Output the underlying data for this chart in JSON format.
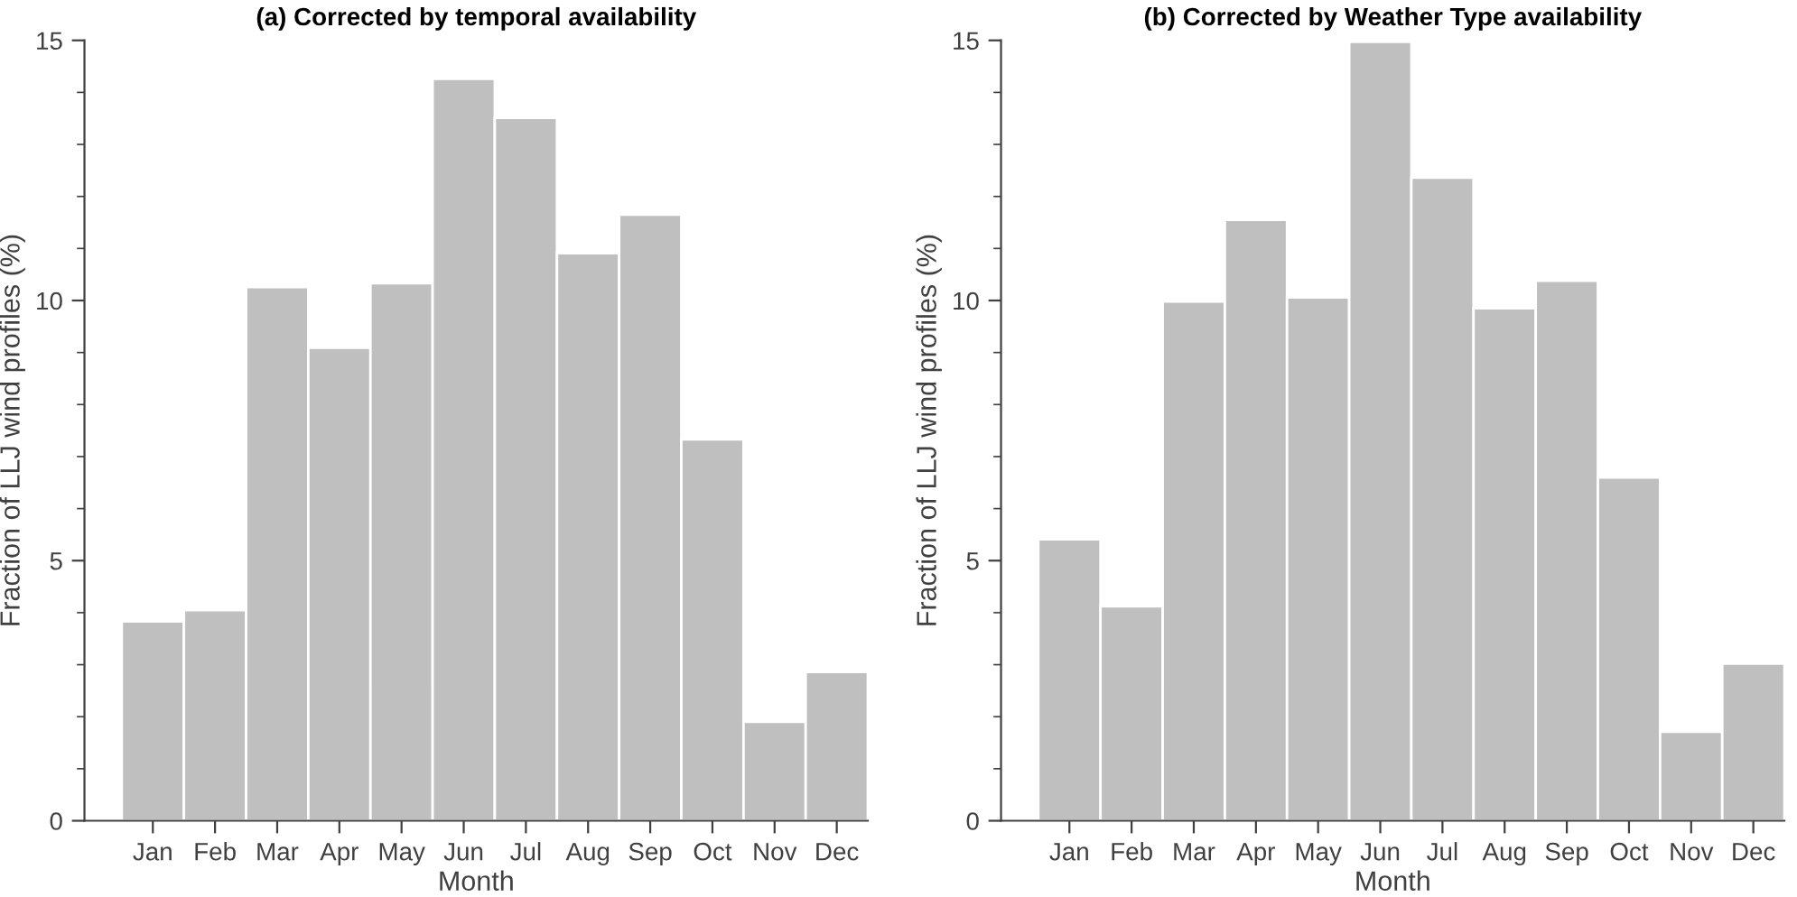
{
  "chart_data": [
    {
      "type": "bar",
      "title": "(a) Corrected by temporal availability",
      "xlabel": "Month",
      "ylabel": "Fraction of LLJ wind profiles (%)",
      "categories": [
        "Jan",
        "Feb",
        "Mar",
        "Apr",
        "May",
        "Jun",
        "Jul",
        "Aug",
        "Sep",
        "Oct",
        "Nov",
        "Dec"
      ],
      "values": [
        3.83,
        4.05,
        10.26,
        9.09,
        10.33,
        14.26,
        13.51,
        10.91,
        11.65,
        7.33,
        1.9,
        2.86
      ],
      "color": "#bfbfbf",
      "ylim": [
        0,
        15
      ],
      "yticks": [
        0,
        {
          "value": 1,
          "label": null
        },
        {
          "value": 2,
          "label": null
        },
        {
          "value": 3,
          "label": null
        },
        {
          "value": 4,
          "label": null
        },
        5,
        {
          "value": 6,
          "label": null
        },
        {
          "value": 7,
          "label": null
        },
        {
          "value": 8,
          "label": null
        },
        {
          "value": 9,
          "label": null
        },
        10,
        {
          "value": 11,
          "label": null
        },
        {
          "value": 12,
          "label": null
        },
        {
          "value": 13,
          "label": null
        },
        {
          "value": 14,
          "label": null
        },
        15
      ],
      "grid": false,
      "legend": false
    },
    {
      "type": "bar",
      "title": "(b) Corrected by Weather Type availability",
      "xlabel": "Month",
      "ylabel": "Fraction of LLJ wind profiles (%)",
      "categories": [
        "Jan",
        "Feb",
        "Mar",
        "Apr",
        "May",
        "Jun",
        "Jul",
        "Aug",
        "Sep",
        "Oct",
        "Nov",
        "Dec"
      ],
      "values": [
        5.41,
        4.12,
        9.98,
        11.55,
        10.06,
        14.97,
        12.36,
        9.85,
        10.38,
        6.6,
        1.71,
        3.02
      ],
      "color": "#bfbfbf",
      "ylim": [
        0,
        15
      ],
      "yticks": [
        0,
        {
          "value": 1,
          "label": null
        },
        {
          "value": 2,
          "label": null
        },
        {
          "value": 3,
          "label": null
        },
        {
          "value": 4,
          "label": null
        },
        5,
        {
          "value": 6,
          "label": null
        },
        {
          "value": 7,
          "label": null
        },
        {
          "value": 8,
          "label": null
        },
        {
          "value": 9,
          "label": null
        },
        10,
        {
          "value": 11,
          "label": null
        },
        {
          "value": 12,
          "label": null
        },
        {
          "value": 13,
          "label": null
        },
        {
          "value": 14,
          "label": null
        },
        15
      ],
      "grid": false,
      "legend": false
    }
  ]
}
